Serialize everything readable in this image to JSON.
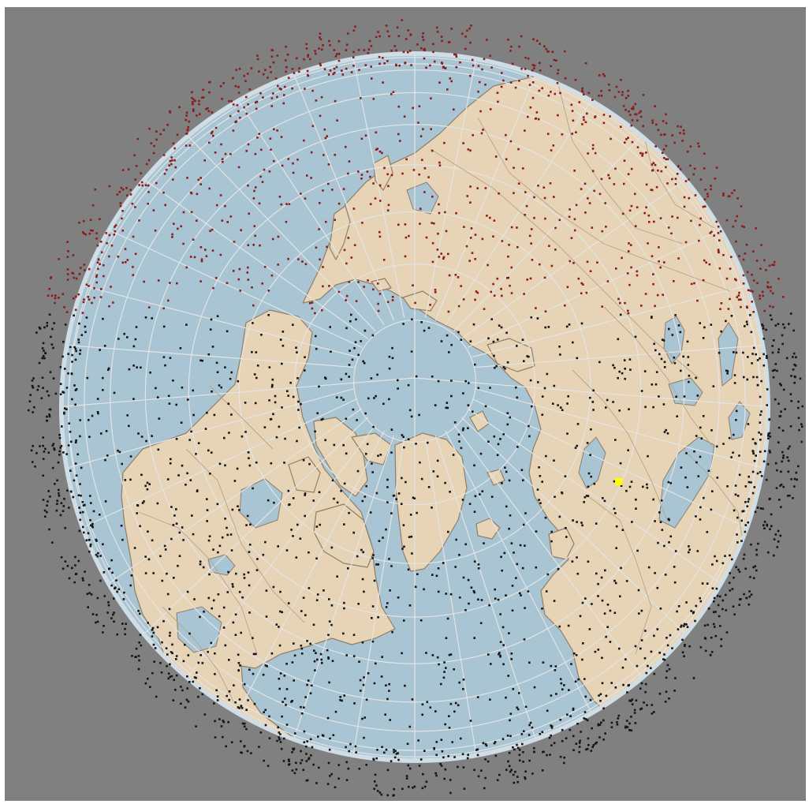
{
  "view": {
    "projection": "orthographic",
    "center": "north-pole",
    "graticule": true
  },
  "colors": {
    "background": "#808080",
    "ocean": "#a9c4d3",
    "ocean_edge": "#cfdde6",
    "land": "#e7d3b6",
    "coast": "#8f7f67",
    "border": "#b6a48a",
    "graticule": "#e3e5e4",
    "satellite_day": "#8b1c1c",
    "satellite_night": "#151515",
    "observer": "#ffff00"
  },
  "layers": {
    "satellites": {
      "count": 3200,
      "seed": 7
    },
    "observer": {
      "marker": "observer-marker-icon"
    }
  }
}
